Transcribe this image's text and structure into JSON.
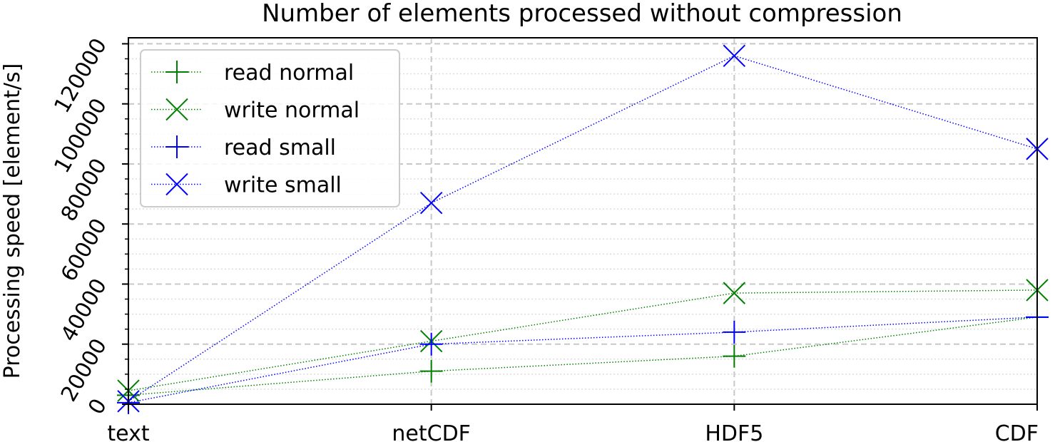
{
  "chart_data": {
    "type": "line",
    "title": "Number of elements processed without compression",
    "xlabel": "",
    "ylabel": "Processing speed [element/s]",
    "categories": [
      "text",
      "netCDF",
      "HDF5",
      "CDF"
    ],
    "ylim": [
      0,
      122000
    ],
    "yticks": [
      0,
      20000,
      40000,
      60000,
      80000,
      100000,
      120000
    ],
    "grid": true,
    "legend_position": "top-left",
    "series": [
      {
        "name": "read normal",
        "marker": "plus",
        "color": "#008000",
        "values": [
          3000,
          11000,
          16000,
          29000
        ]
      },
      {
        "name": "write normal",
        "marker": "x",
        "color": "#008000",
        "values": [
          4500,
          21000,
          37000,
          38000
        ]
      },
      {
        "name": "read small",
        "marker": "plus",
        "color": "#0000ff",
        "values": [
          500,
          20000,
          24000,
          29000
        ]
      },
      {
        "name": "write small",
        "marker": "x",
        "color": "#0000ff",
        "values": [
          1000,
          67000,
          116000,
          85000
        ]
      }
    ]
  }
}
